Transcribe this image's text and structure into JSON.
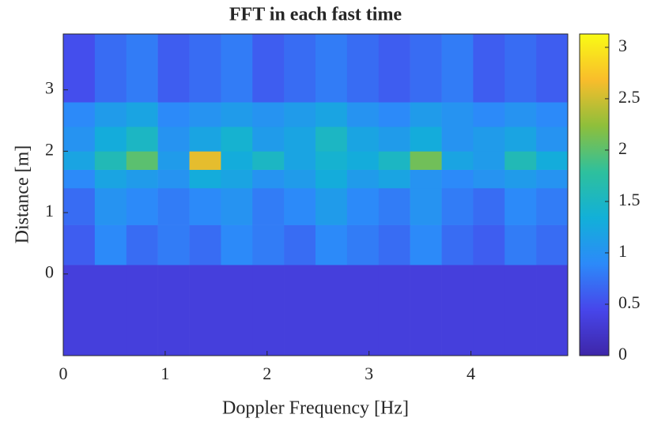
{
  "chart_data": {
    "type": "heatmap",
    "title": "FFT in each fast time",
    "x_label": "Doppler Frequency [Hz]",
    "y_label": "Distance [m]",
    "xlim": [
      0,
      4.95
    ],
    "ylim": [
      -1.33,
      3.91
    ],
    "xticks": [
      0,
      1,
      2,
      3,
      4
    ],
    "yticks": [
      0,
      1,
      2,
      3
    ],
    "x_edges": [
      0,
      0.309,
      0.619,
      0.928,
      1.238,
      1.547,
      1.856,
      2.166,
      2.475,
      2.784,
      3.094,
      3.403,
      3.713,
      4.022,
      4.331,
      4.641,
      4.95
    ],
    "y_edges": [
      -1.33,
      0.15,
      0.8,
      1.4,
      1.7,
      2.0,
      2.4,
      2.8,
      3.91
    ],
    "z": [
      [
        0.35,
        0.35,
        0.35,
        0.35,
        0.35,
        0.35,
        0.35,
        0.35,
        0.35,
        0.35,
        0.35,
        0.35,
        0.35,
        0.35,
        0.35,
        0.35
      ],
      [
        0.6,
        0.9,
        0.7,
        0.8,
        0.7,
        0.9,
        0.8,
        0.7,
        0.9,
        0.8,
        0.7,
        0.9,
        0.7,
        0.6,
        0.8,
        0.7
      ],
      [
        0.7,
        1.0,
        0.9,
        0.8,
        0.9,
        1.0,
        0.8,
        0.9,
        1.1,
        0.9,
        0.8,
        1.0,
        0.8,
        0.7,
        0.9,
        0.8
      ],
      [
        0.9,
        1.2,
        1.1,
        1.0,
        1.3,
        1.2,
        1.0,
        1.1,
        1.3,
        1.1,
        1.2,
        1.0,
        0.9,
        1.0,
        1.1,
        1.0
      ],
      [
        1.2,
        1.6,
        2.0,
        1.1,
        2.6,
        1.3,
        1.5,
        1.2,
        1.4,
        1.3,
        1.5,
        2.1,
        1.2,
        1.1,
        1.6,
        1.3
      ],
      [
        1.0,
        1.3,
        1.5,
        1.0,
        1.2,
        1.4,
        1.1,
        1.2,
        1.5,
        1.2,
        1.1,
        1.3,
        1.0,
        1.1,
        1.2,
        1.0
      ],
      [
        0.9,
        1.1,
        1.2,
        0.9,
        1.0,
        1.1,
        1.0,
        1.1,
        1.2,
        1.0,
        0.9,
        1.1,
        1.0,
        0.9,
        1.0,
        0.9
      ],
      [
        0.5,
        0.7,
        0.8,
        0.6,
        0.7,
        0.8,
        0.6,
        0.7,
        0.8,
        0.7,
        0.6,
        0.7,
        0.8,
        0.6,
        0.7,
        0.6
      ]
    ],
    "clim": [
      0,
      3.13
    ],
    "cticks": [
      0,
      0.5,
      1,
      1.5,
      2,
      2.5,
      3
    ],
    "colormap": [
      "#3e26a8",
      "#4746eb",
      "#2c8af9",
      "#12b0d8",
      "#2ec09d",
      "#8ebf3b",
      "#f9bd2b",
      "#f9fb15"
    ]
  }
}
